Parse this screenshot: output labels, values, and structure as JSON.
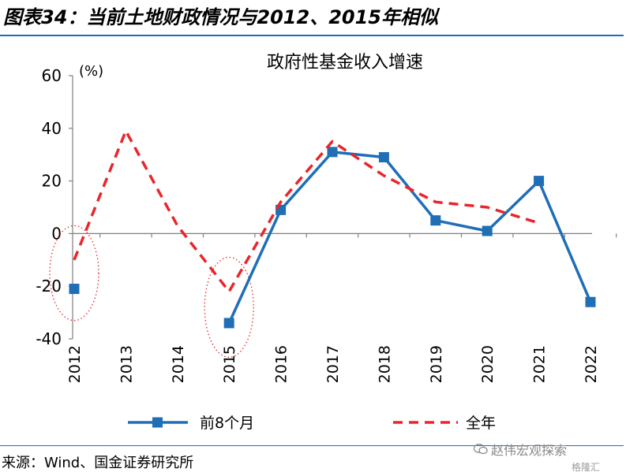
{
  "figure": {
    "title": "图表34：当前土地财政情况与2012、2015年相似",
    "source": "来源：Wind、国金证券研究所",
    "watermark": "赵伟宏观探索",
    "watermark2": "格隆汇",
    "watermark_icon": "wechat-icon"
  },
  "chart_data": {
    "type": "line",
    "title": "政府性基金收入增速",
    "ylabel": "(%)",
    "xlabel": "",
    "ylim": [
      -40,
      60
    ],
    "yticks": [
      -40,
      -20,
      0,
      20,
      40,
      60
    ],
    "categories": [
      "2012",
      "2013",
      "2014",
      "2015",
      "2016",
      "2017",
      "2018",
      "2019",
      "2020",
      "2021",
      "2022"
    ],
    "grid": false,
    "legend_position": "bottom",
    "series": [
      {
        "name": "前8个月",
        "color": "#1f6eb6",
        "style": "solid-with-square-markers",
        "points": [
          {
            "x": "2012",
            "y": -21
          },
          {
            "x": "2015",
            "y": -34
          },
          {
            "x": "2016",
            "y": 9
          },
          {
            "x": "2017",
            "y": 31
          },
          {
            "x": "2018",
            "y": 29
          },
          {
            "x": "2019",
            "y": 5
          },
          {
            "x": "2020",
            "y": 1
          },
          {
            "x": "2021",
            "y": 20
          },
          {
            "x": "2022",
            "y": -26
          }
        ]
      },
      {
        "name": "全年",
        "color": "#e8262b",
        "style": "dashed",
        "points": [
          {
            "x": "2012",
            "y": -10
          },
          {
            "x": "2013",
            "y": 39
          },
          {
            "x": "2014",
            "y": 3
          },
          {
            "x": "2015",
            "y": -22
          },
          {
            "x": "2016",
            "y": 12
          },
          {
            "x": "2017",
            "y": 35
          },
          {
            "x": "2018",
            "y": 22
          },
          {
            "x": "2019",
            "y": 12
          },
          {
            "x": "2020",
            "y": 10
          },
          {
            "x": "2021",
            "y": 4
          }
        ]
      }
    ],
    "highlights": [
      {
        "category": "2012",
        "y_range": [
          -33,
          3
        ],
        "color": "#e8262b",
        "style": "dotted-ellipse"
      },
      {
        "category": "2015",
        "y_range": [
          -47,
          -9
        ],
        "color": "#e8262b",
        "style": "dotted-ellipse"
      }
    ]
  }
}
